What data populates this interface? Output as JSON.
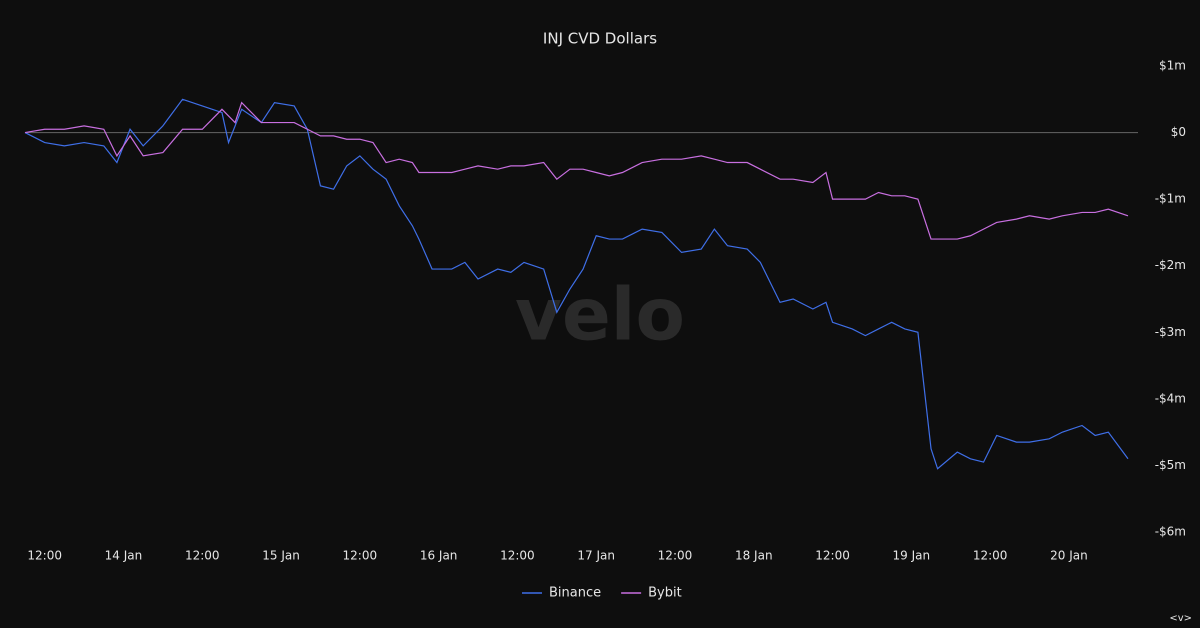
{
  "chart_data": {
    "type": "line",
    "title": "INJ CVD Dollars",
    "watermark": "velo",
    "footer_mark": "<v>",
    "x": [
      9,
      12,
      15,
      18,
      21,
      23,
      25,
      27,
      30,
      33,
      36,
      39,
      40,
      41,
      42,
      45,
      47,
      50,
      52,
      54,
      56,
      58,
      60,
      62,
      64,
      66,
      68,
      69,
      71,
      74,
      76,
      78,
      81,
      83,
      85,
      88,
      90,
      92,
      94,
      96,
      98,
      100,
      103,
      106,
      109,
      112,
      114,
      116,
      119,
      121,
      124,
      126,
      129,
      131,
      132,
      135,
      137,
      139,
      141,
      143,
      145,
      147,
      148,
      151,
      153,
      155,
      157,
      160,
      162,
      165,
      167,
      170,
      172,
      174,
      177
    ],
    "series": [
      {
        "name": "Binance",
        "color": "#3f6fe8",
        "values": [
          0,
          -0.15,
          -0.2,
          -0.15,
          -0.2,
          -0.45,
          0.05,
          -0.2,
          0.1,
          0.5,
          0.4,
          0.3,
          -0.15,
          0.1,
          0.35,
          0.15,
          0.45,
          0.4,
          0.05,
          -0.8,
          -0.85,
          -0.5,
          -0.35,
          -0.55,
          -0.7,
          -1.1,
          -1.4,
          -1.6,
          -2.05,
          -2.05,
          -1.95,
          -2.2,
          -2.05,
          -2.1,
          -1.95,
          -2.05,
          -2.7,
          -2.35,
          -2.05,
          -1.55,
          -1.6,
          -1.6,
          -1.45,
          -1.5,
          -1.8,
          -1.75,
          -1.45,
          -1.7,
          -1.75,
          -1.95,
          -2.55,
          -2.5,
          -2.65,
          -2.55,
          -2.85,
          -2.95,
          -3.05,
          -2.95,
          -2.85,
          -2.95,
          -3.0,
          -4.75,
          -5.05,
          -4.8,
          -4.9,
          -4.95,
          -4.55,
          -4.65,
          -4.65,
          -4.6,
          -4.5,
          -4.4,
          -4.55,
          -4.5,
          -4.9
        ]
      },
      {
        "name": "Bybit",
        "color": "#c86fe0",
        "values": [
          0,
          0.05,
          0.05,
          0.1,
          0.05,
          -0.35,
          -0.05,
          -0.35,
          -0.3,
          0.05,
          0.05,
          0.35,
          0.25,
          0.15,
          0.45,
          0.15,
          0.15,
          0.15,
          0.05,
          -0.05,
          -0.05,
          -0.1,
          -0.1,
          -0.15,
          -0.45,
          -0.4,
          -0.45,
          -0.6,
          -0.6,
          -0.6,
          -0.55,
          -0.5,
          -0.55,
          -0.5,
          -0.5,
          -0.45,
          -0.7,
          -0.55,
          -0.55,
          -0.6,
          -0.65,
          -0.6,
          -0.45,
          -0.4,
          -0.4,
          -0.35,
          -0.4,
          -0.45,
          -0.45,
          -0.55,
          -0.7,
          -0.7,
          -0.75,
          -0.6,
          -1.0,
          -1.0,
          -1.0,
          -0.9,
          -0.95,
          -0.95,
          -1.0,
          -1.6,
          -1.6,
          -1.6,
          -1.55,
          -1.45,
          -1.35,
          -1.3,
          -1.25,
          -1.3,
          -1.25,
          -1.2,
          -1.2,
          -1.15,
          -1.25
        ]
      }
    ],
    "xlim": [
      9,
      177
    ],
    "xticks": [
      {
        "value": 12,
        "label": "12:00"
      },
      {
        "value": 24,
        "label": "14 Jan"
      },
      {
        "value": 36,
        "label": "12:00"
      },
      {
        "value": 48,
        "label": "15 Jan"
      },
      {
        "value": 60,
        "label": "12:00"
      },
      {
        "value": 72,
        "label": "16 Jan"
      },
      {
        "value": 84,
        "label": "12:00"
      },
      {
        "value": 96,
        "label": "17 Jan"
      },
      {
        "value": 108,
        "label": "12:00"
      },
      {
        "value": 120,
        "label": "18 Jan"
      },
      {
        "value": 132,
        "label": "12:00"
      },
      {
        "value": 144,
        "label": "19 Jan"
      },
      {
        "value": 156,
        "label": "12:00"
      },
      {
        "value": 168,
        "label": "20 Jan"
      }
    ],
    "ylim": [
      -6,
      1
    ],
    "yticks": [
      {
        "value": 1,
        "label": "$1m"
      },
      {
        "value": 0,
        "label": "$0"
      },
      {
        "value": -1,
        "label": "-$1m"
      },
      {
        "value": -2,
        "label": "-$2m"
      },
      {
        "value": -3,
        "label": "-$3m"
      },
      {
        "value": -4,
        "label": "-$4m"
      },
      {
        "value": -5,
        "label": "-$5m"
      },
      {
        "value": -6,
        "label": "-$6m"
      }
    ],
    "zero_line": true,
    "legend": "bottom"
  }
}
